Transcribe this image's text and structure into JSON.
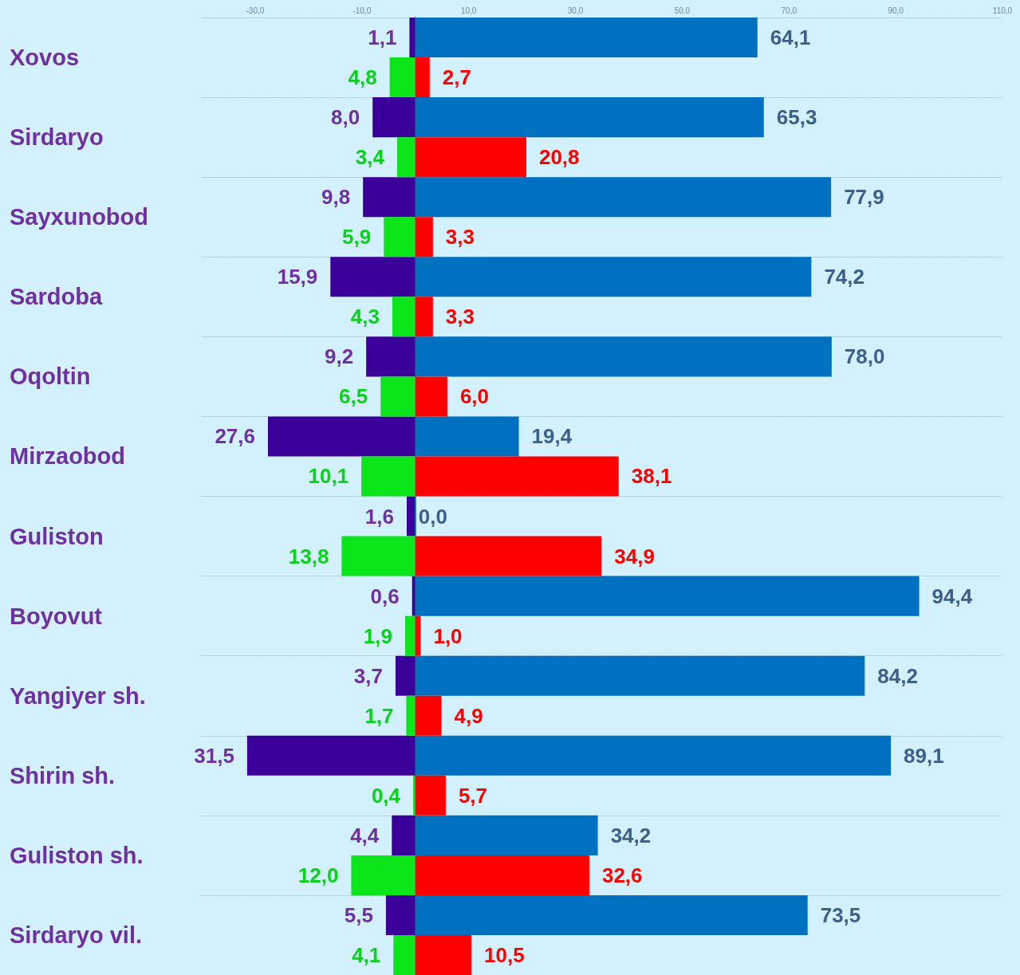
{
  "chart_data": {
    "type": "bar",
    "orientation": "horizontal",
    "grid": "y",
    "categories": [
      "Xovos",
      "Sirdaryo",
      "Sayxunobod",
      "Sardoba",
      "Oqoltin",
      "Mirzaobod",
      "Guliston",
      "Boyovut",
      "Yangiyer sh.",
      "Shirin sh.",
      "Guliston sh.",
      "Sirdaryo vil."
    ],
    "xlim": [
      -40,
      110
    ],
    "xticks": [
      {
        "value": -30,
        "label": "-30,0"
      },
      {
        "value": -10,
        "label": "-10,0"
      },
      {
        "value": 10,
        "label": "10,0"
      },
      {
        "value": 30,
        "label": "30,0"
      },
      {
        "value": 50,
        "label": "50,0"
      },
      {
        "value": 70,
        "label": "70,0"
      },
      {
        "value": 90,
        "label": "90,0"
      },
      {
        "value": 110,
        "label": "110,0"
      }
    ],
    "series": [
      {
        "color": "#3a0099",
        "values": [
          1.1,
          8.0,
          9.8,
          15.9,
          9.2,
          27.6,
          1.6,
          0.6,
          3.7,
          31.5,
          4.4,
          5.5
        ],
        "base": [
          -1.1,
          -8.0,
          -9.8,
          -15.9,
          -9.2,
          -27.6,
          -1.6,
          -0.6,
          -3.7,
          -31.5,
          -4.4,
          -5.5
        ],
        "value_labels": [
          "1,1",
          "8,0",
          "9,8",
          "15,9",
          "9,2",
          "27,6",
          "1,6",
          "0,6",
          "3,7",
          "31,5",
          "4,4",
          "5,5"
        ]
      },
      {
        "color": "#0070c0",
        "values": [
          64.1,
          65.3,
          77.9,
          74.2,
          78.0,
          19.4,
          0.0,
          94.4,
          84.2,
          89.1,
          34.2,
          73.5
        ],
        "value_labels": [
          "64,1",
          "65,3",
          "77,9",
          "74,2",
          "78,0",
          "19,4",
          "0,0",
          "94,4",
          "84,2",
          "89,1",
          "34,2",
          "73,5"
        ]
      },
      {
        "color": "#0ae61a",
        "values": [
          4.8,
          3.4,
          5.9,
          4.3,
          6.5,
          10.1,
          13.8,
          1.9,
          1.7,
          0.4,
          12.0,
          4.1
        ],
        "base": [
          -4.8,
          -3.4,
          -5.9,
          -4.3,
          -6.5,
          -10.1,
          -13.8,
          -1.9,
          -1.7,
          -0.4,
          -12.0,
          -4.1
        ],
        "value_labels": [
          "4,8",
          "3,4",
          "5,9",
          "4,3",
          "6,5",
          "10,1",
          "13,8",
          "1,9",
          "1,7",
          "0,4",
          "12,0",
          "4,1"
        ]
      },
      {
        "color": "#ff0000",
        "values": [
          2.7,
          20.8,
          3.3,
          3.3,
          6.0,
          38.1,
          34.9,
          1.0,
          4.9,
          5.7,
          32.6,
          10.5
        ],
        "value_labels": [
          "2,7",
          "20,8",
          "3,3",
          "3,3",
          "6,0",
          "38,1",
          "34,9",
          "1,0",
          "4,9",
          "5,7",
          "32,6",
          "10,5"
        ]
      }
    ]
  }
}
